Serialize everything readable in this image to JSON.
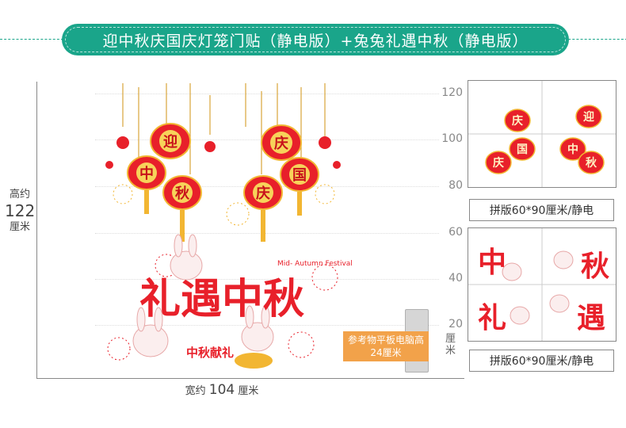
{
  "title": "迎中秋庆国庆灯笼门贴（静电版）+兔兔礼遇中秋（静电版）",
  "height_label": {
    "prefix": "高约",
    "value": "122",
    "unit": "厘米"
  },
  "width_label": {
    "prefix": "宽约",
    "value": "104",
    "unit": "厘米"
  },
  "scale_ticks": [
    "120",
    "100",
    "80",
    "60",
    "40",
    "20"
  ],
  "scale_unit": "厘米",
  "reference_label": "参考物平板电脑高24厘米",
  "lanterns": {
    "left": [
      "迎",
      "中",
      "秋"
    ],
    "right": [
      "庆",
      "国",
      "庆"
    ]
  },
  "art_text": {
    "main": "礼遇中秋",
    "sub": "中秋献礼",
    "english": "Mid- Autumn Festival"
  },
  "thumbnails": [
    {
      "caption": "拼版60*90厘米/静电",
      "chars": [
        "庆",
        "迎",
        "国",
        "中",
        "庆",
        "秋"
      ]
    },
    {
      "caption": "拼版60*90厘米/静电",
      "chars": [
        "中",
        "秋",
        "礼",
        "遇"
      ]
    }
  ],
  "colors": {
    "banner": "#1aa58a",
    "lantern": "#e8202a",
    "gold": "#f2b632",
    "tablet_label": "#f2a24a"
  }
}
